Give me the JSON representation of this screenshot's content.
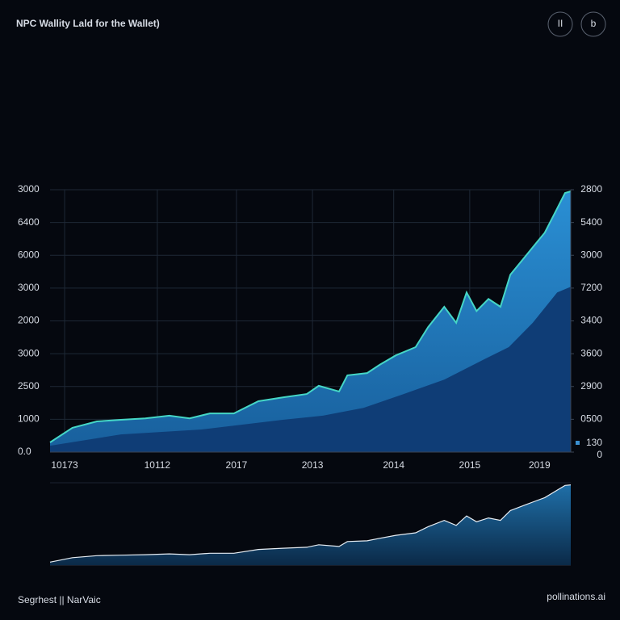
{
  "chart_data": {
    "type": "area",
    "title": "NPC Wallity Lald for the Wallet)",
    "buttons": [
      "II",
      "b"
    ],
    "footer": "Segrhest  ||  NarVaic",
    "watermark": "pollinations.ai",
    "grid": true,
    "xlim": [
      0,
      100
    ],
    "xticks": [
      {
        "value": 2.8,
        "label": "10173"
      },
      {
        "value": 20.6,
        "label": "10112"
      },
      {
        "value": 35.8,
        "label": "2017"
      },
      {
        "value": 50.4,
        "label": "2013"
      },
      {
        "value": 66.0,
        "label": "2014"
      },
      {
        "value": 80.6,
        "label": "2015"
      },
      {
        "value": 94.0,
        "label": "2019"
      }
    ],
    "ylim": [
      0,
      8000
    ],
    "yticks": [
      {
        "value": 0,
        "label": "0.0"
      },
      1000,
      {
        "value": 2000,
        "label": "2500"
      },
      {
        "value": 3000,
        "label": "3000"
      },
      {
        "value": 4000,
        "label": "2000"
      },
      {
        "value": 5000,
        "label": "3000"
      },
      {
        "value": 6000,
        "label": "6000"
      },
      {
        "value": 7000,
        "label": "6400"
      },
      {
        "value": 8000,
        "label": "3000"
      }
    ],
    "y2lim": [
      0,
      8000
    ],
    "y2ticks": [
      0,
      {
        "value": 1000,
        "label": "0500"
      },
      {
        "value": 2000,
        "label": "2900"
      },
      {
        "value": 3000,
        "label": "3600"
      },
      {
        "value": 4000,
        "label": "3400"
      },
      {
        "value": 5000,
        "label": "7200"
      },
      {
        "value": 6000,
        "label": "3000"
      },
      {
        "value": 7000,
        "label": "5400"
      },
      {
        "value": 8000,
        "label": "2800"
      }
    ],
    "series": [
      {
        "color": "#1e7cc0",
        "edge_color": "#45d6c6",
        "x": [
          0,
          4.3,
          9.0,
          13.6,
          18.3,
          22.9,
          26.8,
          30.7,
          35.3,
          40.0,
          44.7,
          49.3,
          51.6,
          55.5,
          57.1,
          60.9,
          63.3,
          66.4,
          70.2,
          72.6,
          75.7,
          78.0,
          80.0,
          81.9,
          84.2,
          86.5,
          88.4,
          91.2,
          93.5,
          95.0,
          97.4,
          98.9,
          100
        ],
        "values": [
          295,
          740,
          935,
          985,
          1030,
          1110,
          1030,
          1180,
          1180,
          1550,
          1670,
          1770,
          2020,
          1845,
          2340,
          2410,
          2660,
          2950,
          3200,
          3810,
          4430,
          3940,
          4870,
          4300,
          4670,
          4430,
          5410,
          5950,
          6400,
          6690,
          7430,
          7900,
          7950
        ]
      },
      {
        "name": "130",
        "color": "#0f3d76",
        "x": [
          0,
          13.6,
          29.1,
          44.7,
          52.4,
          60.2,
          67.9,
          75.7,
          83.4,
          88.1,
          92.7,
          97.4,
          100
        ],
        "values": [
          195,
          540,
          690,
          985,
          1110,
          1350,
          1770,
          2210,
          2830,
          3200,
          3940,
          4870,
          5040
        ]
      }
    ]
  }
}
